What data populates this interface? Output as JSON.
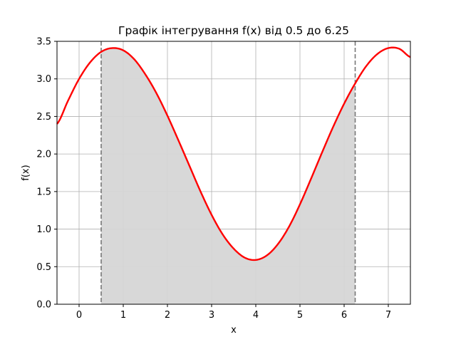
{
  "chart_data": {
    "type": "line",
    "title": "Графік інтегрування f(x) від 0.5 до 6.25",
    "xlabel": "x",
    "ylabel": "f(x)",
    "xlim": [
      -0.5,
      7.5
    ],
    "ylim": [
      0,
      3.5
    ],
    "xticks": [
      "0",
      "1",
      "2",
      "3",
      "4",
      "5",
      "6",
      "7"
    ],
    "yticks": [
      "0.0",
      "0.5",
      "1.0",
      "1.5",
      "2.0",
      "2.5",
      "3.0",
      "3.5"
    ],
    "grid": true,
    "series": [
      {
        "color": "#ff0000",
        "x": [
          -0.5,
          -0.25,
          0,
          0.25,
          0.5,
          0.75,
          1,
          1.25,
          1.5,
          1.75,
          2,
          2.25,
          2.5,
          2.75,
          3,
          3.25,
          3.5,
          3.75,
          4,
          4.25,
          4.5,
          4.75,
          5,
          5.25,
          5.5,
          5.75,
          6,
          6.25,
          6.5,
          6.75,
          7,
          7.25,
          7.5
        ],
        "y": [
          2.4,
          2.71,
          3.0,
          3.22,
          3.36,
          3.41,
          3.38,
          3.26,
          3.06,
          2.81,
          2.51,
          2.18,
          1.84,
          1.5,
          1.19,
          0.93,
          0.74,
          0.62,
          0.59,
          0.65,
          0.8,
          1.03,
          1.33,
          1.67,
          2.02,
          2.36,
          2.67,
          2.94,
          3.17,
          3.33,
          3.41,
          3.4,
          3.29
        ]
      }
    ],
    "shaded_region": {
      "x_from": 0.5,
      "x_to": 6.25,
      "color": "#d6d6d6"
    },
    "vertical_lines": [
      {
        "x": 0.5,
        "style": "dashed",
        "color": "#777777"
      },
      {
        "x": 6.25,
        "style": "dashed",
        "color": "#777777"
      }
    ]
  }
}
